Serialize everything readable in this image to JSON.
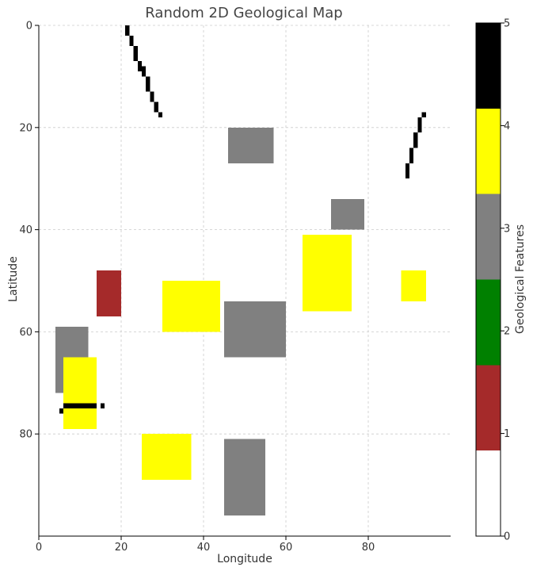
{
  "chart_data": {
    "type": "heatmap",
    "title": "Random 2D Geological Map",
    "xlabel": "Longitude",
    "ylabel": "Latitude",
    "xlim": [
      0,
      100
    ],
    "ylim": [
      100,
      0
    ],
    "x_ticks": [
      0,
      20,
      40,
      60,
      80
    ],
    "y_ticks": [
      0,
      20,
      40,
      60,
      80
    ],
    "grid": true,
    "y_axis_inverted": true,
    "colorbar": {
      "label": "Geological Features",
      "ticks": [
        0,
        1,
        2,
        3,
        4,
        5
      ],
      "range": [
        0,
        5
      ],
      "levels": [
        {
          "value": 0,
          "color": "#ffffff"
        },
        {
          "value": 1,
          "color": "#a52a2a"
        },
        {
          "value": 2,
          "color": "#008000"
        },
        {
          "value": 3,
          "color": "#808080"
        },
        {
          "value": 4,
          "color": "#ffff00"
        },
        {
          "value": 5,
          "color": "#000000"
        }
      ]
    },
    "regions": [
      {
        "value": 3,
        "x0": 46,
        "x1": 57,
        "y0": 20,
        "y1": 27
      },
      {
        "value": 3,
        "x0": 71,
        "x1": 79,
        "y0": 34,
        "y1": 40
      },
      {
        "value": 4,
        "x0": 64,
        "x1": 76,
        "y0": 41,
        "y1": 56
      },
      {
        "value": 4,
        "x0": 88,
        "x1": 94,
        "y0": 48,
        "y1": 54
      },
      {
        "value": 1,
        "x0": 14,
        "x1": 20,
        "y0": 48,
        "y1": 57
      },
      {
        "value": 4,
        "x0": 30,
        "x1": 44,
        "y0": 50,
        "y1": 60
      },
      {
        "value": 3,
        "x0": 45,
        "x1": 60,
        "y0": 54,
        "y1": 65
      },
      {
        "value": 3,
        "x0": 4,
        "x1": 12,
        "y0": 59,
        "y1": 72
      },
      {
        "value": 4,
        "x0": 6,
        "x1": 14,
        "y0": 65,
        "y1": 79
      },
      {
        "value": 4,
        "x0": 25,
        "x1": 37,
        "y0": 80,
        "y1": 89
      },
      {
        "value": 3,
        "x0": 45,
        "x1": 55,
        "y0": 81,
        "y1": 96
      }
    ],
    "cells": [
      {
        "value": 5,
        "x": 21,
        "y": 0
      },
      {
        "value": 5,
        "x": 21,
        "y": 1
      },
      {
        "value": 5,
        "x": 22,
        "y": 2
      },
      {
        "value": 5,
        "x": 22,
        "y": 3
      },
      {
        "value": 5,
        "x": 23,
        "y": 4
      },
      {
        "value": 5,
        "x": 23,
        "y": 5
      },
      {
        "value": 5,
        "x": 23,
        "y": 6
      },
      {
        "value": 5,
        "x": 24,
        "y": 7
      },
      {
        "value": 5,
        "x": 24,
        "y": 8
      },
      {
        "value": 5,
        "x": 25,
        "y": 8
      },
      {
        "value": 5,
        "x": 25,
        "y": 9
      },
      {
        "value": 5,
        "x": 26,
        "y": 10
      },
      {
        "value": 5,
        "x": 26,
        "y": 11
      },
      {
        "value": 5,
        "x": 26,
        "y": 12
      },
      {
        "value": 5,
        "x": 27,
        "y": 13
      },
      {
        "value": 5,
        "x": 27,
        "y": 14
      },
      {
        "value": 5,
        "x": 28,
        "y": 15
      },
      {
        "value": 5,
        "x": 28,
        "y": 16
      },
      {
        "value": 5,
        "x": 29,
        "y": 17
      },
      {
        "value": 5,
        "x": 93,
        "y": 17
      },
      {
        "value": 5,
        "x": 92,
        "y": 18
      },
      {
        "value": 5,
        "x": 92,
        "y": 19
      },
      {
        "value": 5,
        "x": 92,
        "y": 20
      },
      {
        "value": 5,
        "x": 91,
        "y": 21
      },
      {
        "value": 5,
        "x": 91,
        "y": 22
      },
      {
        "value": 5,
        "x": 91,
        "y": 23
      },
      {
        "value": 5,
        "x": 90,
        "y": 24
      },
      {
        "value": 5,
        "x": 90,
        "y": 25
      },
      {
        "value": 5,
        "x": 90,
        "y": 26
      },
      {
        "value": 5,
        "x": 89,
        "y": 27
      },
      {
        "value": 5,
        "x": 89,
        "y": 28
      },
      {
        "value": 5,
        "x": 89,
        "y": 29
      },
      {
        "value": 5,
        "x": 5,
        "y": 75
      },
      {
        "value": 5,
        "x": 6,
        "y": 74
      },
      {
        "value": 5,
        "x": 7,
        "y": 74
      },
      {
        "value": 5,
        "x": 8,
        "y": 74
      },
      {
        "value": 5,
        "x": 9,
        "y": 74
      },
      {
        "value": 5,
        "x": 10,
        "y": 74
      },
      {
        "value": 5,
        "x": 11,
        "y": 74
      },
      {
        "value": 5,
        "x": 12,
        "y": 74
      },
      {
        "value": 5,
        "x": 13,
        "y": 74
      },
      {
        "value": 5,
        "x": 15,
        "y": 74
      }
    ]
  }
}
